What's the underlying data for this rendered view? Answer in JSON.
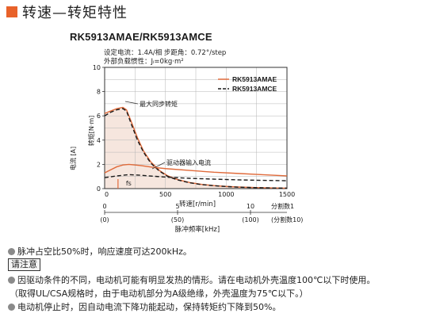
{
  "heading": {
    "title": "转速—转矩特性"
  },
  "chart_data": {
    "type": "line",
    "title": "RK5913AMAE/RK5913AMCE",
    "spec_lines": [
      "设定电流：1.4A/相  步距角：0.72°/step",
      "外部负载惯性：Jₗ=0kg·m²"
    ],
    "xlabel": "转速[r/min]",
    "ylabel_torque": "转矩[N·m]",
    "ylabel_current": "电流 [A]",
    "xlim": [
      0,
      1500
    ],
    "ylim": [
      0,
      10
    ],
    "x_ticks": [
      "0",
      "500",
      "1000",
      "1500"
    ],
    "y_ticks": [
      "0",
      "2",
      "4",
      "6",
      "8",
      "10"
    ],
    "freq_axis": {
      "label": "脉冲频率[kHz]",
      "ticks": [
        {
          "x": 0,
          "top": "0",
          "bottom": "(0)"
        },
        {
          "x": 600,
          "top": "5",
          "bottom": "(50)"
        },
        {
          "x": 1200,
          "top": "10",
          "bottom": "(100)"
        }
      ],
      "end_label_top": "分割数1",
      "end_label_bottom": "(分割数10)"
    },
    "series": [
      {
        "name": "RK5913AMAE",
        "style": "solid",
        "color": "#e06a3a",
        "x": [
          0,
          50,
          100,
          150,
          180,
          220,
          270,
          320,
          380,
          450,
          520,
          600,
          700,
          800,
          900,
          1000,
          1100,
          1200,
          1300,
          1400,
          1500
        ],
        "y": [
          6.2,
          6.4,
          6.6,
          6.7,
          6.5,
          5.5,
          4.2,
          3.1,
          2.2,
          1.5,
          1.05,
          0.75,
          0.5,
          0.35,
          0.25,
          0.18,
          0.13,
          0.1,
          0.07,
          0.05,
          0.04
        ]
      },
      {
        "name": "RK5913AMCE",
        "style": "dashed",
        "color": "#1a1a1a",
        "x": [
          0,
          50,
          100,
          150,
          180,
          220,
          270,
          320,
          380,
          450,
          520,
          600,
          700,
          800,
          900,
          1000,
          1100,
          1200,
          1300,
          1400,
          1500
        ],
        "y": [
          6.0,
          6.3,
          6.5,
          6.6,
          6.4,
          5.3,
          4.0,
          3.0,
          2.1,
          1.45,
          1.0,
          0.72,
          0.48,
          0.33,
          0.24,
          0.17,
          0.12,
          0.09,
          0.07,
          0.05,
          0.04
        ]
      }
    ],
    "current_series": [
      {
        "name": "RK5913AMAE current",
        "style": "solid",
        "color": "#e06a3a",
        "x": [
          0,
          50,
          100,
          150,
          200,
          300,
          400,
          500,
          700,
          900,
          1100,
          1300,
          1500
        ],
        "y": [
          1.3,
          1.55,
          1.8,
          1.95,
          2.0,
          1.9,
          1.75,
          1.65,
          1.5,
          1.35,
          1.25,
          1.15,
          1.05
        ]
      },
      {
        "name": "RK5913AMCE current",
        "style": "dashed",
        "color": "#1a1a1a",
        "x": [
          0,
          100,
          200,
          300,
          500,
          700,
          900,
          1100,
          1300,
          1500
        ],
        "y": [
          0.9,
          1.05,
          1.15,
          1.1,
          0.95,
          0.85,
          0.78,
          0.72,
          0.68,
          0.65
        ]
      }
    ],
    "fs_marker": {
      "x": 110,
      "y": 0.3
    },
    "annotations": [
      "最大同步转矩",
      "驱动器输入电流",
      "fs"
    ],
    "shaded_region_color": "#f6e6de",
    "legend_position": "top-right"
  },
  "notes": {
    "duty": "脉冲占空比50%时，响应速度可达200kHz。",
    "caution_label": "请注意",
    "heat": "因驱动条件的不同，电动机可能有明显发热的情形。请在电动机外壳温度100℃以下时使用。",
    "heat_sub": "（取得UL/CSA规格时，由于电动机部分为A级绝缘，外壳温度为75℃以下。）",
    "auto_current": "电动机停止时，因自动电流下降功能起动，保持转矩约下降到50%。"
  }
}
